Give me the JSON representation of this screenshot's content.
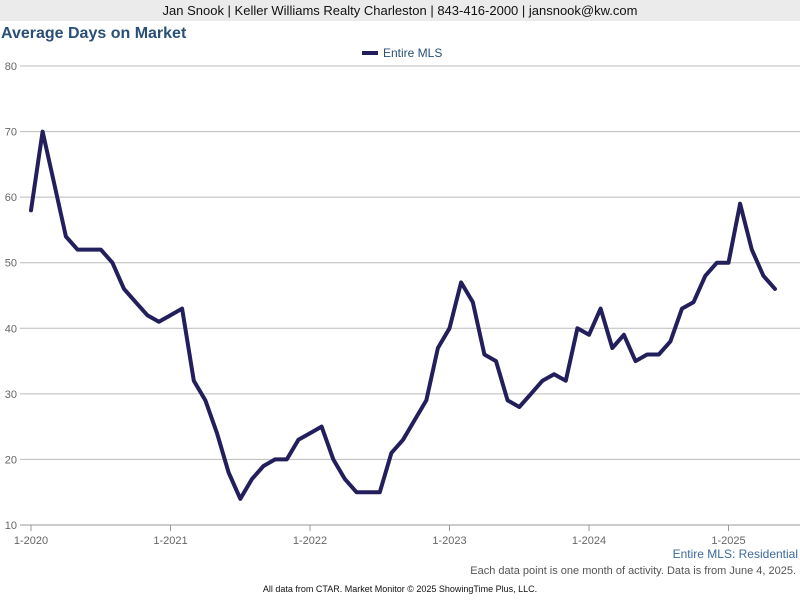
{
  "header": {
    "contact": "Jan Snook | Keller Williams Realty Charleston | 843-416-2000 | jansnook@kw.com"
  },
  "footer": {
    "dataset_label": "Entire MLS: Residential",
    "note": "Each data point is one month of activity. Data is from June 4, 2025.",
    "credit": "All data from CTAR. Market Monitor © 2025 ShowingTime Plus, LLC."
  },
  "colors": {
    "series": "#231f5c",
    "grid": "#bbbbbb",
    "axis": "#999999"
  },
  "chart_data": {
    "type": "line",
    "title": "Average Days on Market",
    "legend_position": "top-center",
    "grid": true,
    "ylim": [
      10,
      80
    ],
    "yticks": [
      "10",
      "20",
      "30",
      "40",
      "50",
      "60",
      "70",
      "80"
    ],
    "xticks": [
      "1-2020",
      "1-2021",
      "1-2022",
      "1-2023",
      "1-2024",
      "1-2025"
    ],
    "x_start": "1-2020",
    "x_end": "5-2025",
    "series": [
      {
        "name": "Entire MLS",
        "values": [
          58,
          70,
          62,
          54,
          52,
          52,
          52,
          50,
          46,
          44,
          42,
          41,
          42,
          43,
          32,
          29,
          24,
          18,
          14,
          17,
          19,
          20,
          20,
          23,
          24,
          25,
          20,
          17,
          15,
          15,
          15,
          21,
          23,
          26,
          29,
          37,
          40,
          47,
          44,
          36,
          35,
          29,
          28,
          30,
          32,
          33,
          32,
          40,
          39,
          43,
          37,
          39,
          35,
          36,
          36,
          38,
          43,
          44,
          48,
          50,
          50,
          59,
          52,
          48,
          46
        ]
      }
    ]
  }
}
